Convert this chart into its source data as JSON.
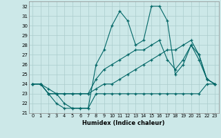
{
  "xlabel": "Humidex (Indice chaleur)",
  "ylabel": "",
  "xlim": [
    -0.5,
    23.5
  ],
  "ylim": [
    21,
    32.5
  ],
  "yticks": [
    21,
    22,
    23,
    24,
    25,
    26,
    27,
    28,
    29,
    30,
    31,
    32
  ],
  "xticks": [
    0,
    1,
    2,
    3,
    4,
    5,
    6,
    7,
    8,
    9,
    10,
    11,
    12,
    13,
    14,
    15,
    16,
    17,
    18,
    19,
    20,
    21,
    22,
    23
  ],
  "bg_color": "#cce8e8",
  "grid_color": "#aacccc",
  "line_color": "#006666",
  "lines": [
    [
      24.0,
      24.0,
      23.0,
      22.0,
      21.5,
      21.5,
      21.5,
      21.5,
      23.0,
      23.0,
      23.0,
      23.0,
      23.0,
      23.0,
      23.0,
      23.0,
      23.0,
      23.0,
      23.0,
      23.0,
      23.0,
      23.0,
      24.0,
      24.0
    ],
    [
      24.0,
      24.0,
      23.0,
      23.0,
      22.0,
      21.5,
      21.5,
      21.5,
      26.0,
      27.5,
      30.0,
      31.5,
      30.5,
      28.0,
      28.5,
      32.0,
      32.0,
      30.5,
      25.0,
      26.0,
      28.0,
      27.0,
      24.5,
      24.0
    ],
    [
      24.0,
      24.0,
      23.5,
      23.0,
      23.0,
      23.0,
      23.0,
      23.0,
      24.5,
      25.5,
      26.0,
      26.5,
      27.0,
      27.5,
      27.5,
      28.0,
      28.5,
      26.5,
      25.5,
      26.5,
      28.0,
      26.5,
      24.5,
      24.0
    ],
    [
      24.0,
      24.0,
      23.0,
      23.0,
      23.0,
      23.0,
      23.0,
      23.0,
      23.5,
      24.0,
      24.0,
      24.5,
      25.0,
      25.5,
      26.0,
      26.5,
      27.0,
      27.5,
      27.5,
      28.0,
      28.5,
      27.0,
      24.5,
      24.0
    ]
  ]
}
